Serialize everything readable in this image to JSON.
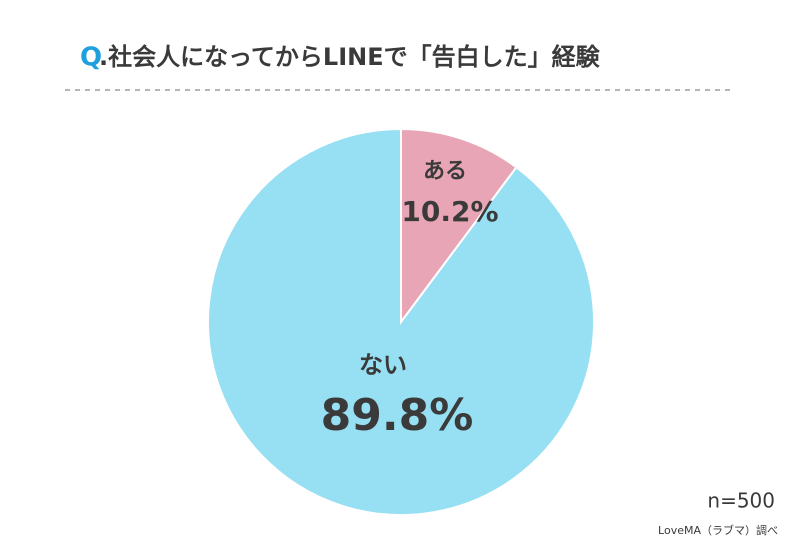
{
  "chart_data": {
    "type": "pie",
    "title_marker": "Q",
    "title": ".社会人になってからLINEで「告白した」経験",
    "categories": [
      "ある",
      "ない"
    ],
    "values": [
      10.2,
      89.8
    ],
    "value_labels": [
      "10.2%",
      "89.8%"
    ],
    "colors": [
      "#e8a5b6",
      "#97dff2"
    ],
    "sample_note": "n=500",
    "source": "LoveMA（ラブマ）調べ"
  }
}
